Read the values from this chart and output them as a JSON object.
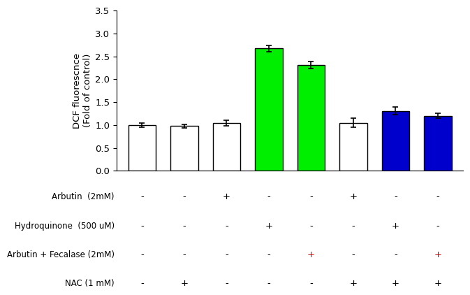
{
  "bar_values": [
    1.0,
    0.98,
    1.05,
    2.67,
    2.31,
    1.05,
    1.31,
    1.2
  ],
  "bar_errors": [
    0.05,
    0.04,
    0.06,
    0.07,
    0.07,
    0.1,
    0.08,
    0.05
  ],
  "bar_colors": [
    "white",
    "white",
    "white",
    "#00ee00",
    "#00ee00",
    "white",
    "#0000cc",
    "#0000cc"
  ],
  "bar_edgecolors": [
    "black",
    "black",
    "black",
    "black",
    "black",
    "black",
    "black",
    "black"
  ],
  "ylabel": "DCF fluorescnce\n(Fold of control)",
  "ylim": [
    0.0,
    3.5
  ],
  "yticks": [
    0.0,
    0.5,
    1.0,
    1.5,
    2.0,
    2.5,
    3.0,
    3.5
  ],
  "row_labels": [
    "Arbutin  (2mM)",
    "Hydroquinone  (500 uM)",
    "Arbutin + Fecalase (2mM)",
    "NAC (1 mM)"
  ],
  "table_data": [
    [
      "-",
      "-",
      "+",
      "-",
      "-",
      "+",
      "-",
      "-"
    ],
    [
      "-",
      "-",
      "-",
      "+",
      "-",
      "-",
      "+",
      "-"
    ],
    [
      "-",
      "-",
      "-",
      "-",
      "+",
      "-",
      "-",
      "+"
    ],
    [
      "-",
      "+",
      "-",
      "-",
      "-",
      "+",
      "+",
      "+"
    ]
  ],
  "table_plus_color_row": 2,
  "bar_width": 0.65,
  "figure_width": 6.4,
  "figure_height": 4.33
}
